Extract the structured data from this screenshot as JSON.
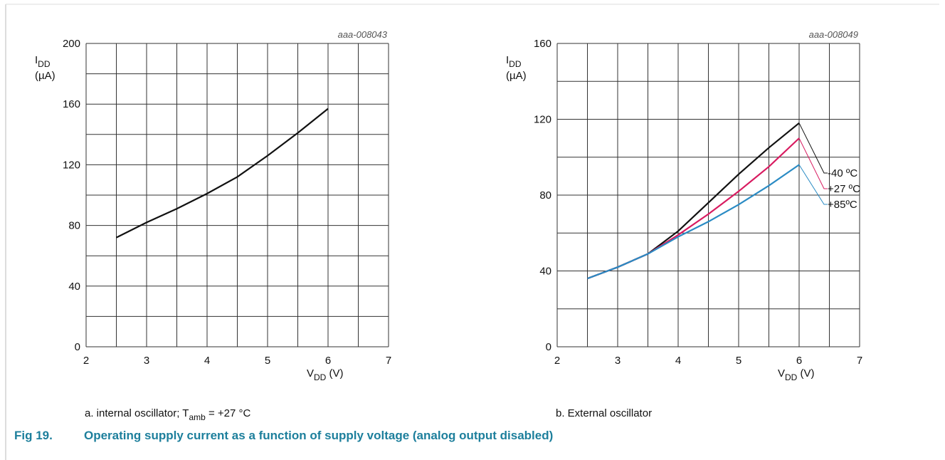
{
  "chart_data": [
    {
      "type": "line",
      "code": "aaa-008043",
      "ylabel": {
        "main": "I",
        "sub": "DD",
        "unit": "(µA)"
      },
      "xlabel": {
        "main": "V",
        "sub": "DD",
        "unit": " (V)"
      },
      "caption": {
        "prefix": "a. internal oscillator; T",
        "sub": "amb",
        "suffix": " = +27 °C"
      },
      "x": [
        2.5,
        3,
        3.5,
        4,
        4.5,
        5,
        5.5,
        6
      ],
      "series": [
        {
          "color": "#111111",
          "values": [
            72,
            82,
            91,
            101,
            112,
            126,
            141,
            157
          ]
        }
      ],
      "xlim": [
        2,
        7
      ],
      "ylim": [
        0,
        200
      ],
      "xticks": [
        2,
        3,
        4,
        5,
        6,
        7
      ],
      "yticks": [
        0,
        40,
        80,
        120,
        160,
        200
      ],
      "xgrid": [
        2.5,
        3.5,
        4.5,
        5.5,
        6.5
      ],
      "ygrid": [
        20,
        60,
        100,
        140,
        180
      ],
      "grid": true
    },
    {
      "type": "line",
      "code": "aaa-008049",
      "ylabel": {
        "main": "I",
        "sub": "DD",
        "unit": "(µA)"
      },
      "xlabel": {
        "main": "V",
        "sub": "DD",
        "unit": " (V)"
      },
      "caption": {
        "prefix": "b. External oscillator"
      },
      "x": [
        2.5,
        3,
        3.5,
        4,
        4.5,
        5,
        5.5,
        6
      ],
      "series": [
        {
          "name": "-40 ºC",
          "color": "#111111",
          "values": [
            36,
            42,
            49,
            61,
            76,
            91,
            105,
            118
          ]
        },
        {
          "name": "+27 ºC",
          "color": "#d81b60",
          "values": [
            36,
            42,
            49,
            59,
            70,
            82,
            95,
            110
          ]
        },
        {
          "name": "+85ºC",
          "color": "#2a8bc4",
          "values": [
            36,
            42,
            49,
            58,
            66,
            75,
            85,
            96
          ]
        }
      ],
      "xlim": [
        2,
        7
      ],
      "ylim": [
        0,
        160
      ],
      "xticks": [
        2,
        3,
        4,
        5,
        6,
        7
      ],
      "yticks": [
        0,
        40,
        80,
        120,
        160
      ],
      "xgrid": [
        2.5,
        3.5,
        4.5,
        5.5,
        6.5
      ],
      "ygrid": [
        20,
        60,
        100,
        140
      ],
      "grid": true
    }
  ],
  "figure": {
    "number": "Fig 19.",
    "title": "Operating supply current as a function of supply voltage (analog output disabled)"
  }
}
